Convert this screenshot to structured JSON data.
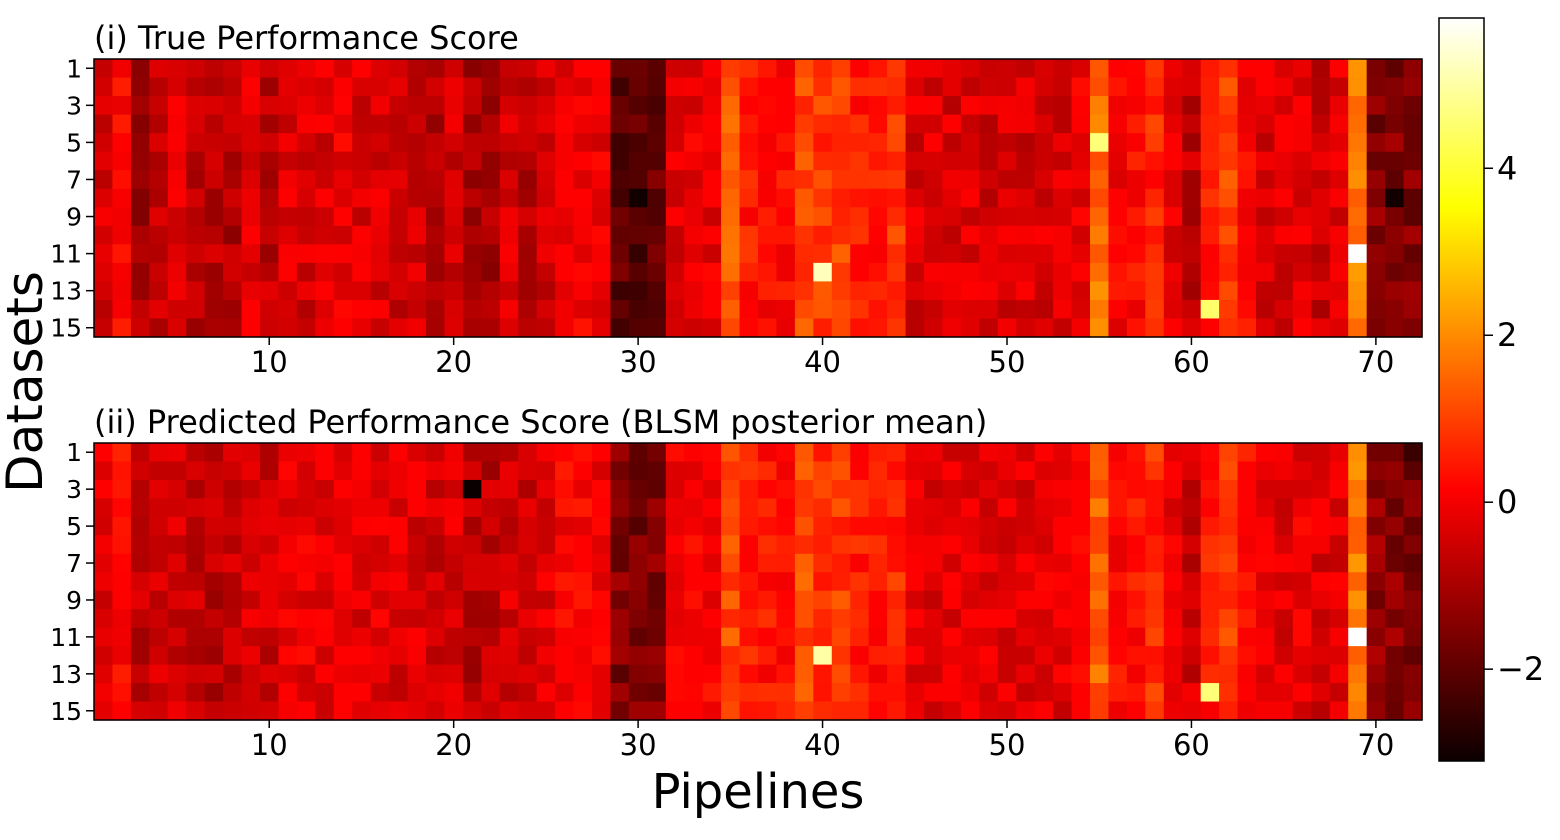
{
  "figure": {
    "ylabel": "Datasets",
    "xlabel": "Pipelines"
  },
  "colorbar": {
    "colormap": "hot",
    "vmin": -3.1,
    "vmax": 5.8,
    "ticks": [
      -2,
      0,
      2,
      4
    ],
    "tick_labels": [
      "−2",
      "0",
      "2",
      "4"
    ]
  },
  "chart_data": [
    {
      "type": "heatmap",
      "title": "(i) True Performance Score",
      "xlabel": "",
      "ylabel": "Datasets",
      "n_rows": 15,
      "n_cols": 72,
      "x_ticks": [
        10,
        20,
        30,
        40,
        50,
        60,
        70
      ],
      "y_ticks": [
        1,
        3,
        5,
        7,
        9,
        11,
        13,
        15
      ],
      "value_range": [
        -3.1,
        5.8
      ],
      "column_means": [
        -0.5,
        0.2,
        -1.1,
        -0.6,
        -0.5,
        -0.9,
        -0.9,
        -1.0,
        -0.4,
        -0.8,
        -0.4,
        -0.5,
        -0.4,
        -0.2,
        -0.4,
        -0.4,
        -0.6,
        -0.6,
        -0.9,
        -0.5,
        -1.1,
        -1.1,
        -0.5,
        -1.0,
        -0.5,
        -0.1,
        0.0,
        -0.2,
        -2.0,
        -2.1,
        -2.0,
        -0.3,
        -0.2,
        -0.2,
        1.3,
        0.4,
        0.2,
        0.2,
        1.1,
        0.9,
        1.0,
        0.4,
        0.4,
        0.8,
        -0.4,
        -0.4,
        -0.5,
        -0.4,
        -0.5,
        -0.5,
        -0.5,
        -0.4,
        -0.5,
        -0.2,
        1.6,
        0.0,
        0.2,
        0.6,
        -0.3,
        -0.8,
        0.4,
        1.0,
        0.1,
        -0.4,
        -0.4,
        -0.3,
        -0.6,
        -0.4,
        1.8,
        -1.6,
        -1.6,
        -1.6
      ],
      "notable_cells": [
        {
          "row": 12,
          "col": 40,
          "value": 5.2
        },
        {
          "row": 11,
          "col": 69,
          "value": 5.8
        },
        {
          "row": 14,
          "col": 61,
          "value": 4.5
        },
        {
          "row": 5,
          "col": 55,
          "value": 4.6
        },
        {
          "row": 8,
          "col": 30,
          "value": -3.0
        },
        {
          "row": 8,
          "col": 71,
          "value": -3.0
        }
      ]
    },
    {
      "type": "heatmap",
      "title": "(ii) Predicted Performance Score (BLSM posterior mean)",
      "xlabel": "Pipelines",
      "ylabel": "Datasets",
      "n_rows": 15,
      "n_cols": 72,
      "x_ticks": [
        10,
        20,
        30,
        40,
        50,
        60,
        70
      ],
      "y_ticks": [
        1,
        3,
        5,
        7,
        9,
        11,
        13,
        15
      ],
      "value_range": [
        -3.1,
        5.8
      ],
      "column_means": [
        -0.3,
        0.2,
        -0.8,
        -0.5,
        -0.6,
        -0.8,
        -0.8,
        -0.8,
        -0.4,
        -0.6,
        -0.2,
        -0.2,
        -0.2,
        -0.1,
        -0.3,
        -0.2,
        -0.4,
        -0.4,
        -0.6,
        -0.4,
        -0.9,
        -0.8,
        -0.5,
        -0.7,
        -0.3,
        0.0,
        0.1,
        -0.1,
        -1.6,
        -1.7,
        -1.6,
        -0.2,
        0.0,
        0.0,
        1.1,
        0.4,
        0.3,
        0.3,
        1.2,
        0.8,
        0.9,
        0.4,
        0.3,
        0.7,
        -0.3,
        -0.3,
        -0.3,
        -0.2,
        -0.3,
        -0.3,
        -0.3,
        -0.2,
        -0.3,
        -0.1,
        1.4,
        0.2,
        0.3,
        0.7,
        -0.1,
        -0.6,
        0.4,
        0.9,
        0.2,
        -0.3,
        -0.3,
        -0.2,
        -0.4,
        -0.3,
        1.7,
        -1.4,
        -1.5,
        -1.6
      ],
      "notable_cells": [
        {
          "row": 12,
          "col": 40,
          "value": 5.0
        },
        {
          "row": 11,
          "col": 69,
          "value": 5.8
        },
        {
          "row": 14,
          "col": 61,
          "value": 4.6
        },
        {
          "row": 3,
          "col": 21,
          "value": -3.1
        },
        {
          "row": 1,
          "col": 72,
          "value": -2.5
        }
      ]
    }
  ]
}
